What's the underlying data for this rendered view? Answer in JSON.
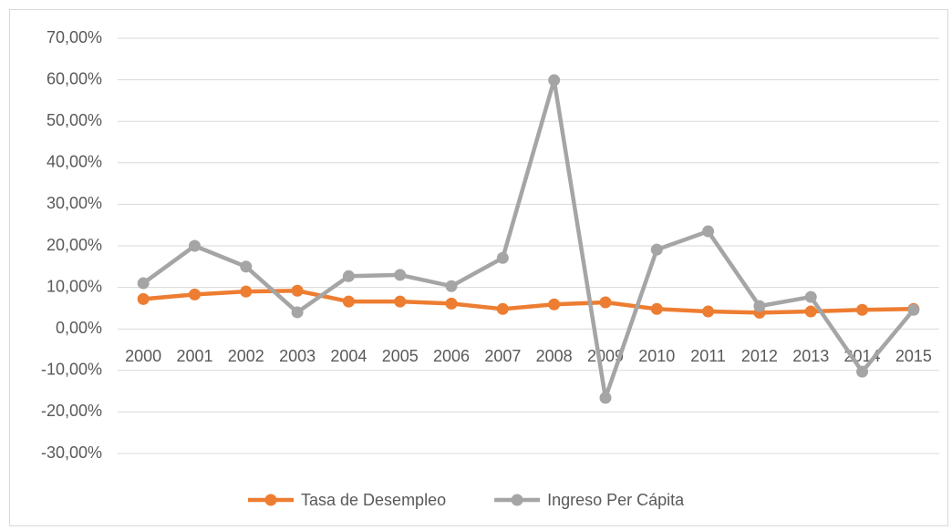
{
  "chart_data": {
    "type": "line",
    "categories": [
      "2000",
      "2001",
      "2002",
      "2003",
      "2004",
      "2005",
      "2006",
      "2007",
      "2008",
      "2009",
      "2010",
      "2011",
      "2012",
      "2013",
      "2014",
      "2015"
    ],
    "series": [
      {
        "name": "Tasa de Desempleo",
        "color": "#ed7d31",
        "values": [
          7.2,
          8.3,
          9.0,
          9.2,
          6.6,
          6.6,
          6.1,
          4.8,
          5.9,
          6.4,
          4.8,
          4.2,
          3.9,
          4.2,
          4.6,
          4.8
        ]
      },
      {
        "name": "Ingreso Per Cápita",
        "color": "#a5a5a5",
        "values": [
          11.0,
          20.0,
          15.0,
          4.0,
          12.7,
          13.0,
          10.3,
          17.1,
          59.9,
          -16.6,
          19.1,
          23.5,
          5.5,
          7.7,
          -10.3,
          4.6
        ]
      }
    ],
    "ylim": [
      -30,
      70
    ],
    "yticks": [
      {
        "value": -30,
        "label": "-30,00%"
      },
      {
        "value": -20,
        "label": "-20,00%"
      },
      {
        "value": -10,
        "label": "-10,00%"
      },
      {
        "value": 0,
        "label": "0,00%"
      },
      {
        "value": 10,
        "label": "10,00%"
      },
      {
        "value": 20,
        "label": "20,00%"
      },
      {
        "value": 30,
        "label": "30,00%"
      },
      {
        "value": 40,
        "label": "40,00%"
      },
      {
        "value": 50,
        "label": "50,00%"
      },
      {
        "value": 60,
        "label": "60,00%"
      },
      {
        "value": 70,
        "label": "70,00%"
      }
    ],
    "grid": true,
    "legend": "bottom"
  }
}
